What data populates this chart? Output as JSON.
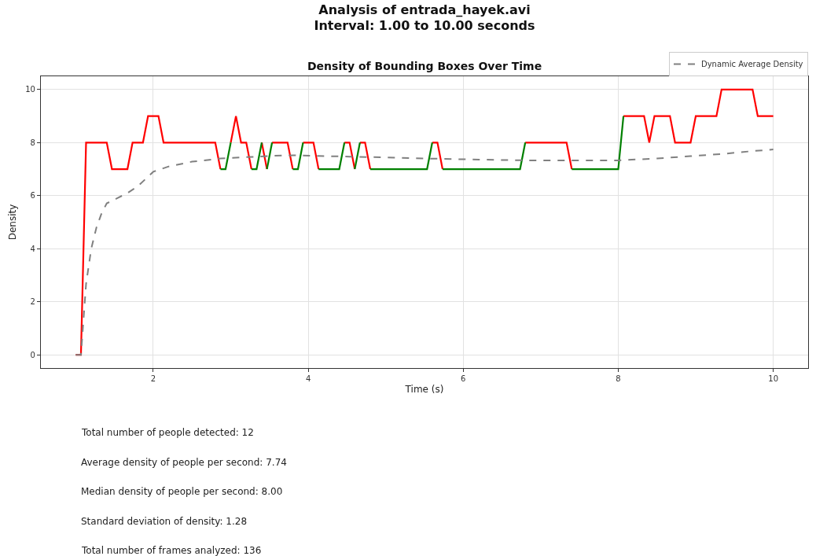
{
  "chart_data": {
    "type": "line",
    "title": "Analysis of entrada_hayek.avi\nInterval: 1.00 to 10.00 seconds",
    "subtitle": "Density of Bounding Boxes Over Time",
    "xlabel": "Time (s)",
    "ylabel": "Density",
    "series": [
      {
        "color": "#ff0000",
        "x": [
          1.0,
          1.067,
          1.133,
          1.4,
          1.467,
          1.667,
          1.733,
          1.867,
          1.933,
          2.067,
          2.133,
          2.8,
          2.867,
          2.9,
          3.0,
          3.067,
          3.133,
          3.2,
          3.267,
          3.3,
          3.4,
          3.467,
          3.5,
          3.533,
          3.733,
          3.8,
          3.85,
          3.933,
          4.067,
          4.133,
          4.3,
          4.467,
          4.533,
          4.6,
          4.63,
          4.667,
          4.733,
          4.8,
          5.2,
          5.6,
          5.667,
          5.733,
          6.3,
          6.8,
          7.333,
          7.4,
          7.7,
          8.067,
          8.333,
          8.4,
          8.467,
          8.667,
          8.733,
          8.933,
          9.0,
          9.267,
          9.333,
          9.733,
          9.8,
          10.0
        ],
        "values": [
          0,
          0,
          8,
          8,
          7,
          7,
          8,
          8,
          9,
          9,
          8,
          8,
          7,
          null,
          8,
          9,
          8,
          8,
          7,
          null,
          8,
          7,
          null,
          8,
          8,
          7,
          null,
          8,
          8,
          7,
          null,
          8,
          8,
          7,
          null,
          8,
          8,
          7,
          null,
          8,
          8,
          7,
          null,
          8,
          8,
          7,
          null,
          9,
          9,
          8,
          9,
          9,
          8,
          8,
          9,
          9,
          10,
          10,
          9,
          9
        ]
      },
      {
        "color": "#008000",
        "x": [
          2.867,
          2.933,
          3.0,
          3.1,
          3.267,
          3.333,
          3.4,
          3.43,
          3.467,
          3.533,
          3.6,
          3.8,
          3.867,
          3.933,
          4.0,
          4.133,
          4.4,
          4.467,
          4.5,
          4.6,
          4.667,
          4.7,
          4.8,
          5.533,
          5.6,
          5.65,
          5.733,
          6.733,
          6.8,
          7.0,
          7.4,
          8.0,
          8.067
        ],
        "values": [
          7,
          7,
          8,
          null,
          7,
          7,
          8,
          null,
          7,
          8,
          null,
          7,
          7,
          8,
          null,
          7,
          7,
          8,
          null,
          7,
          8,
          null,
          7,
          7,
          8,
          null,
          7,
          7,
          8,
          null,
          7,
          7,
          9
        ]
      },
      {
        "name": "Dynamic Average Density",
        "color": "#808080",
        "line_style": "dashed",
        "x": [
          1.0,
          1.067,
          1.133,
          1.2,
          1.267,
          1.333,
          1.4,
          1.533,
          1.667,
          1.8,
          2.0,
          2.2,
          2.5,
          2.867,
          3.2,
          3.533,
          3.8,
          4.067,
          4.533,
          5.0,
          5.533,
          6.0,
          6.8,
          7.4,
          8.0,
          8.5,
          8.933,
          9.333,
          9.733,
          10.0
        ],
        "values": [
          0,
          0,
          2.67,
          4.0,
          4.8,
          5.33,
          5.71,
          5.9,
          6.1,
          6.35,
          6.9,
          7.1,
          7.28,
          7.4,
          7.45,
          7.5,
          7.52,
          7.5,
          7.47,
          7.44,
          7.4,
          7.37,
          7.33,
          7.33,
          7.33,
          7.4,
          7.49,
          7.57,
          7.68,
          7.74
        ]
      }
    ],
    "xlim": [
      0.55,
      10.45
    ],
    "ylim": [
      -0.5,
      10.5
    ],
    "xticks": [
      2,
      4,
      6,
      8,
      10
    ],
    "yticks": [
      0,
      2,
      4,
      6,
      8,
      10
    ],
    "grid": true,
    "legend": "top right",
    "marker": "none",
    "annotations": [
      "Total number of people detected: 12",
      "Average density of people per second: 7.74",
      "Median density of people per second: 8.00",
      "Standard deviation of density: 1.28",
      "Total number of frames analyzed: 136"
    ]
  }
}
